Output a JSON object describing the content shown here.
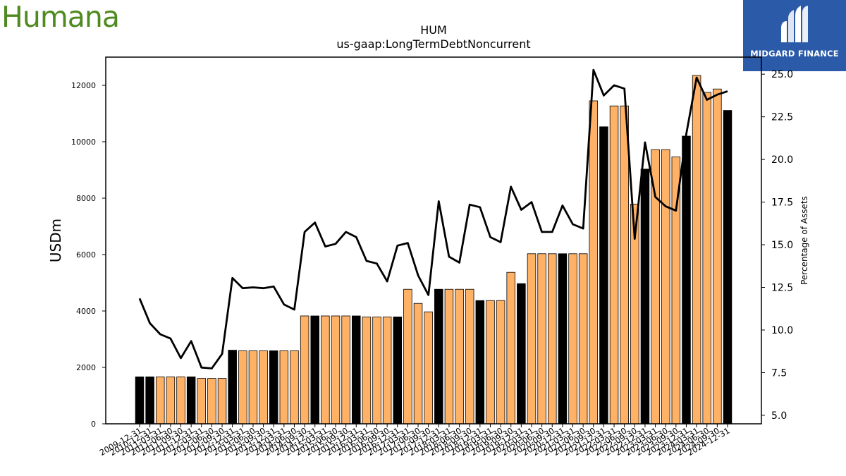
{
  "branding": {
    "left_logo_text": "Humana",
    "right_logo_text": "MIDGARD FINANCE",
    "left_logo_color": "#4e8a1f",
    "right_logo_bg": "#2a5aa8"
  },
  "chart_data": {
    "type": "bar",
    "title": "HUM",
    "subtitle": "us-gaap:LongTermDebtNoncurrent",
    "ylabel": "USDm",
    "y2label": "Percentage of Assets",
    "ylim": [
      0,
      13000
    ],
    "y2lim": [
      4.5,
      26.0
    ],
    "yticks": [
      0,
      2000,
      4000,
      6000,
      8000,
      10000,
      12000
    ],
    "y2ticks": [
      "5.0",
      "7.5",
      "10.0",
      "12.5",
      "15.0",
      "17.5",
      "20.0",
      "22.5",
      "25.0"
    ],
    "colors": {
      "annual": "#000000",
      "quarterly": "#ffb266",
      "line": "#000000"
    },
    "categories": [
      "2009-12-31",
      "2010-12-31",
      "2011-03-31",
      "2011-06-30",
      "2011-09-30",
      "2011-12-31",
      "2012-03-31",
      "2012-06-30",
      "2012-09-30",
      "2012-12-31",
      "2013-03-31",
      "2013-06-30",
      "2013-09-30",
      "2013-12-31",
      "2014-03-31",
      "2014-06-30",
      "2014-09-30",
      "2014-12-31",
      "2015-03-31",
      "2015-06-30",
      "2015-09-30",
      "2015-12-31",
      "2016-03-31",
      "2016-06-30",
      "2016-09-30",
      "2016-12-31",
      "2017-03-31",
      "2017-06-30",
      "2017-09-30",
      "2017-12-31",
      "2018-03-31",
      "2018-06-30",
      "2018-09-30",
      "2018-12-31",
      "2019-03-31",
      "2019-06-30",
      "2019-09-30",
      "2019-12-31",
      "2020-03-31",
      "2020-06-30",
      "2020-09-30",
      "2020-12-31",
      "2021-03-31",
      "2021-06-30",
      "2021-09-30",
      "2021-12-31",
      "2022-03-31",
      "2022-06-30",
      "2022-09-30",
      "2022-12-31",
      "2023-03-31",
      "2023-06-30",
      "2023-09-30",
      "2023-12-31",
      "2024-03-31",
      "2024-06-30",
      "2024-09-30",
      "2024-12-31"
    ],
    "annual_flags": [
      1,
      1,
      0,
      0,
      0,
      1,
      0,
      0,
      0,
      1,
      0,
      0,
      0,
      1,
      0,
      0,
      0,
      1,
      0,
      0,
      0,
      1,
      0,
      0,
      0,
      1,
      0,
      0,
      0,
      1,
      0,
      0,
      0,
      1,
      0,
      0,
      0,
      1,
      0,
      0,
      0,
      1,
      0,
      0,
      0,
      1,
      0,
      0,
      0,
      1,
      0,
      0,
      0,
      1,
      0,
      0,
      0,
      1
    ],
    "series": [
      {
        "name": "LongTermDebtNoncurrent",
        "values": [
          1665,
          1665,
          1665,
          1665,
          1665,
          1665,
          1610,
          1610,
          1610,
          2610,
          2590,
          2590,
          2590,
          2590,
          2590,
          2590,
          3825,
          3825,
          3825,
          3825,
          3825,
          3825,
          3790,
          3790,
          3790,
          3790,
          4770,
          4270,
          3970,
          4770,
          4770,
          4770,
          4770,
          4370,
          4370,
          4370,
          5370,
          4970,
          6030,
          6030,
          6030,
          6030,
          6030,
          6030,
          11450,
          10530,
          11270,
          11270,
          7790,
          9030,
          9720,
          9720,
          9460,
          10200,
          12350,
          11750,
          11870,
          11110
        ]
      },
      {
        "name": "Percentage of Assets",
        "axis": "right",
        "values": [
          11.85,
          10.4,
          9.75,
          9.5,
          8.35,
          9.35,
          7.8,
          7.75,
          8.6,
          13.05,
          12.45,
          12.5,
          12.45,
          12.55,
          11.5,
          11.2,
          15.75,
          16.3,
          14.9,
          15.05,
          15.75,
          15.45,
          14.05,
          13.9,
          12.85,
          14.95,
          15.1,
          13.2,
          12.05,
          17.55,
          14.3,
          13.95,
          17.35,
          17.2,
          15.45,
          15.15,
          18.4,
          17.05,
          17.5,
          15.75,
          15.75,
          17.3,
          16.2,
          15.95,
          25.25,
          23.75,
          24.35,
          24.15,
          15.35,
          21.0,
          17.8,
          17.25,
          17.0,
          21.5,
          24.8,
          23.5,
          23.8,
          24.0
        ]
      }
    ]
  }
}
